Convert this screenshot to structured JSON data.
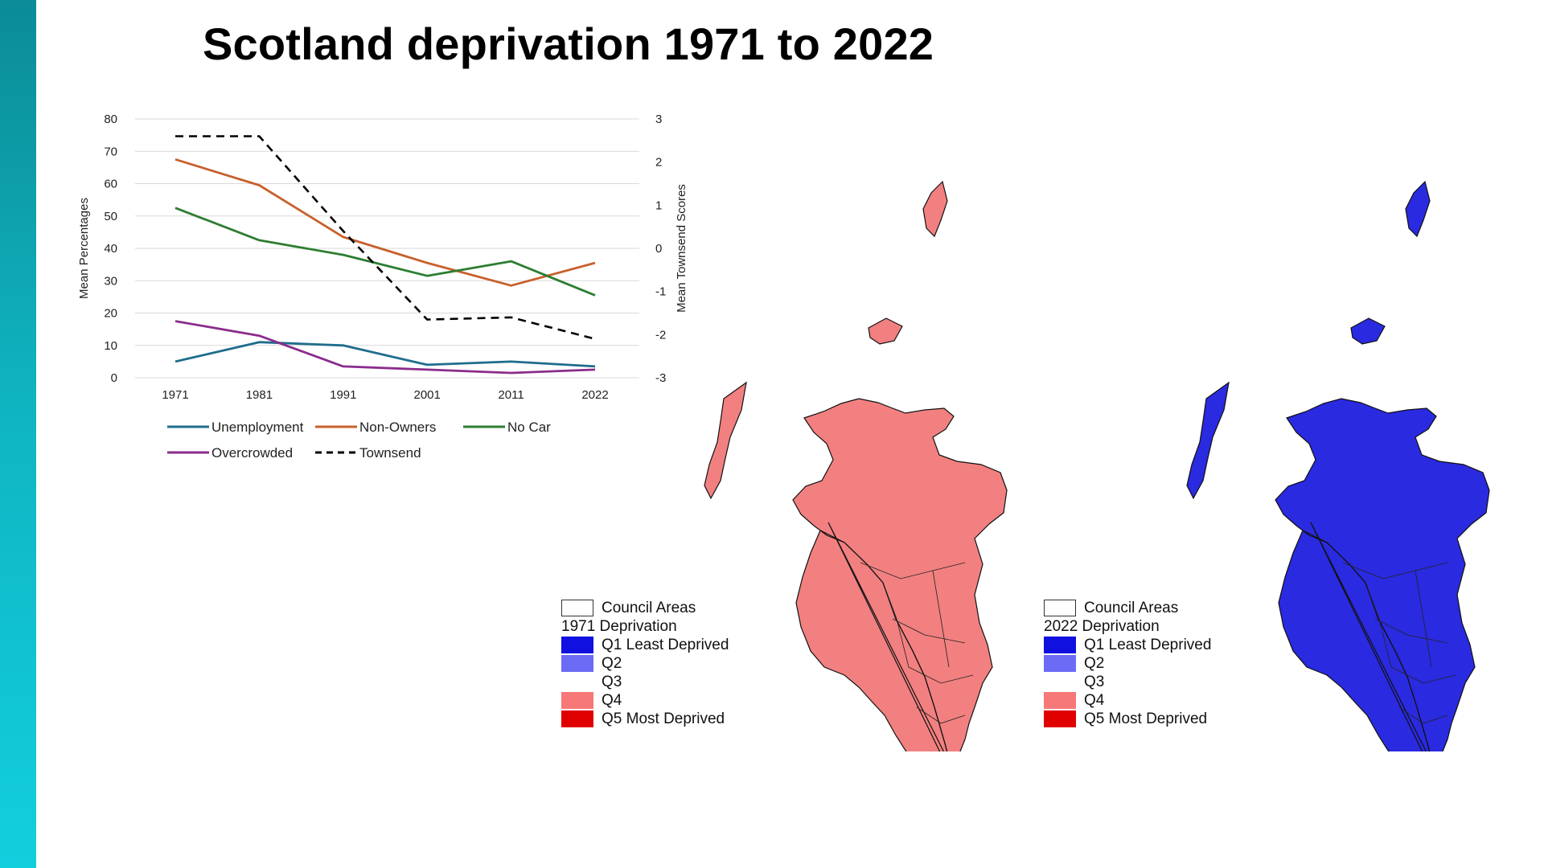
{
  "slide": {
    "title": "Scotland deprivation 1971 to 2022",
    "accent_color": "#0fb3c0"
  },
  "chart_data": {
    "type": "line",
    "x": [
      "1971",
      "1981",
      "1991",
      "2001",
      "2011",
      "2022"
    ],
    "ylabel": "Mean Percentages",
    "y2label": "Mean Townsend Scores",
    "ylim": [
      0,
      80
    ],
    "y2lim": [
      -3,
      3
    ],
    "yticks": [
      "0",
      "10",
      "20",
      "30",
      "40",
      "50",
      "60",
      "70",
      "80"
    ],
    "y2ticks": [
      "-3",
      "-2",
      "-1",
      "0",
      "1",
      "2",
      "3"
    ],
    "grid": true,
    "legend_position": "bottom",
    "series": [
      {
        "name": "Unemployment",
        "axis": "left",
        "color": "#1f6d8c",
        "dash": false,
        "values": [
          5,
          11,
          10,
          4,
          5,
          3.5
        ]
      },
      {
        "name": "Non-Owners",
        "axis": "left",
        "color": "#c8602c",
        "dash": false,
        "values": [
          67.5,
          59.5,
          43.5,
          35.5,
          28.5,
          35.5
        ]
      },
      {
        "name": "No Car",
        "axis": "left",
        "color": "#2e7d32",
        "dash": false,
        "values": [
          52.5,
          42.5,
          38,
          31.5,
          36,
          25.5
        ]
      },
      {
        "name": "Overcrowded",
        "axis": "left",
        "color": "#8b2c8c",
        "dash": false,
        "values": [
          17.5,
          13,
          3.5,
          2.5,
          1.5,
          2.5
        ]
      },
      {
        "name": "Townsend",
        "axis": "right",
        "color": "#000000",
        "dash": true,
        "values": [
          2.6,
          2.6,
          0.4,
          -1.65,
          -1.6,
          -2.1
        ]
      }
    ]
  },
  "maps": [
    {
      "id": "1971",
      "base_color": "#f28080",
      "accent_color": "#e00000",
      "secondary_color": "#5b5bf5",
      "legend": {
        "council": "Council Areas",
        "heading": "1971 Deprivation",
        "items": [
          {
            "label": "Q1 Least Deprived",
            "color": "#1010e0"
          },
          {
            "label": "Q2",
            "color": "#6b6bf5"
          },
          {
            "label": "Q3",
            "color": "#ffffff"
          },
          {
            "label": "Q4",
            "color": "#f77878"
          },
          {
            "label": "Q5 Most Deprived",
            "color": "#e00000"
          }
        ]
      }
    },
    {
      "id": "2022",
      "base_color": "#2a2ae0",
      "accent_color": "#1818c8",
      "secondary_color": "#e86060",
      "legend": {
        "council": "Council Areas",
        "heading": "2022 Deprivation",
        "items": [
          {
            "label": "Q1 Least Deprived",
            "color": "#1010e0"
          },
          {
            "label": "Q2",
            "color": "#6b6bf5"
          },
          {
            "label": "Q3",
            "color": "#ffffff"
          },
          {
            "label": "Q4",
            "color": "#f77878"
          },
          {
            "label": "Q5 Most Deprived",
            "color": "#e00000"
          }
        ]
      }
    }
  ]
}
